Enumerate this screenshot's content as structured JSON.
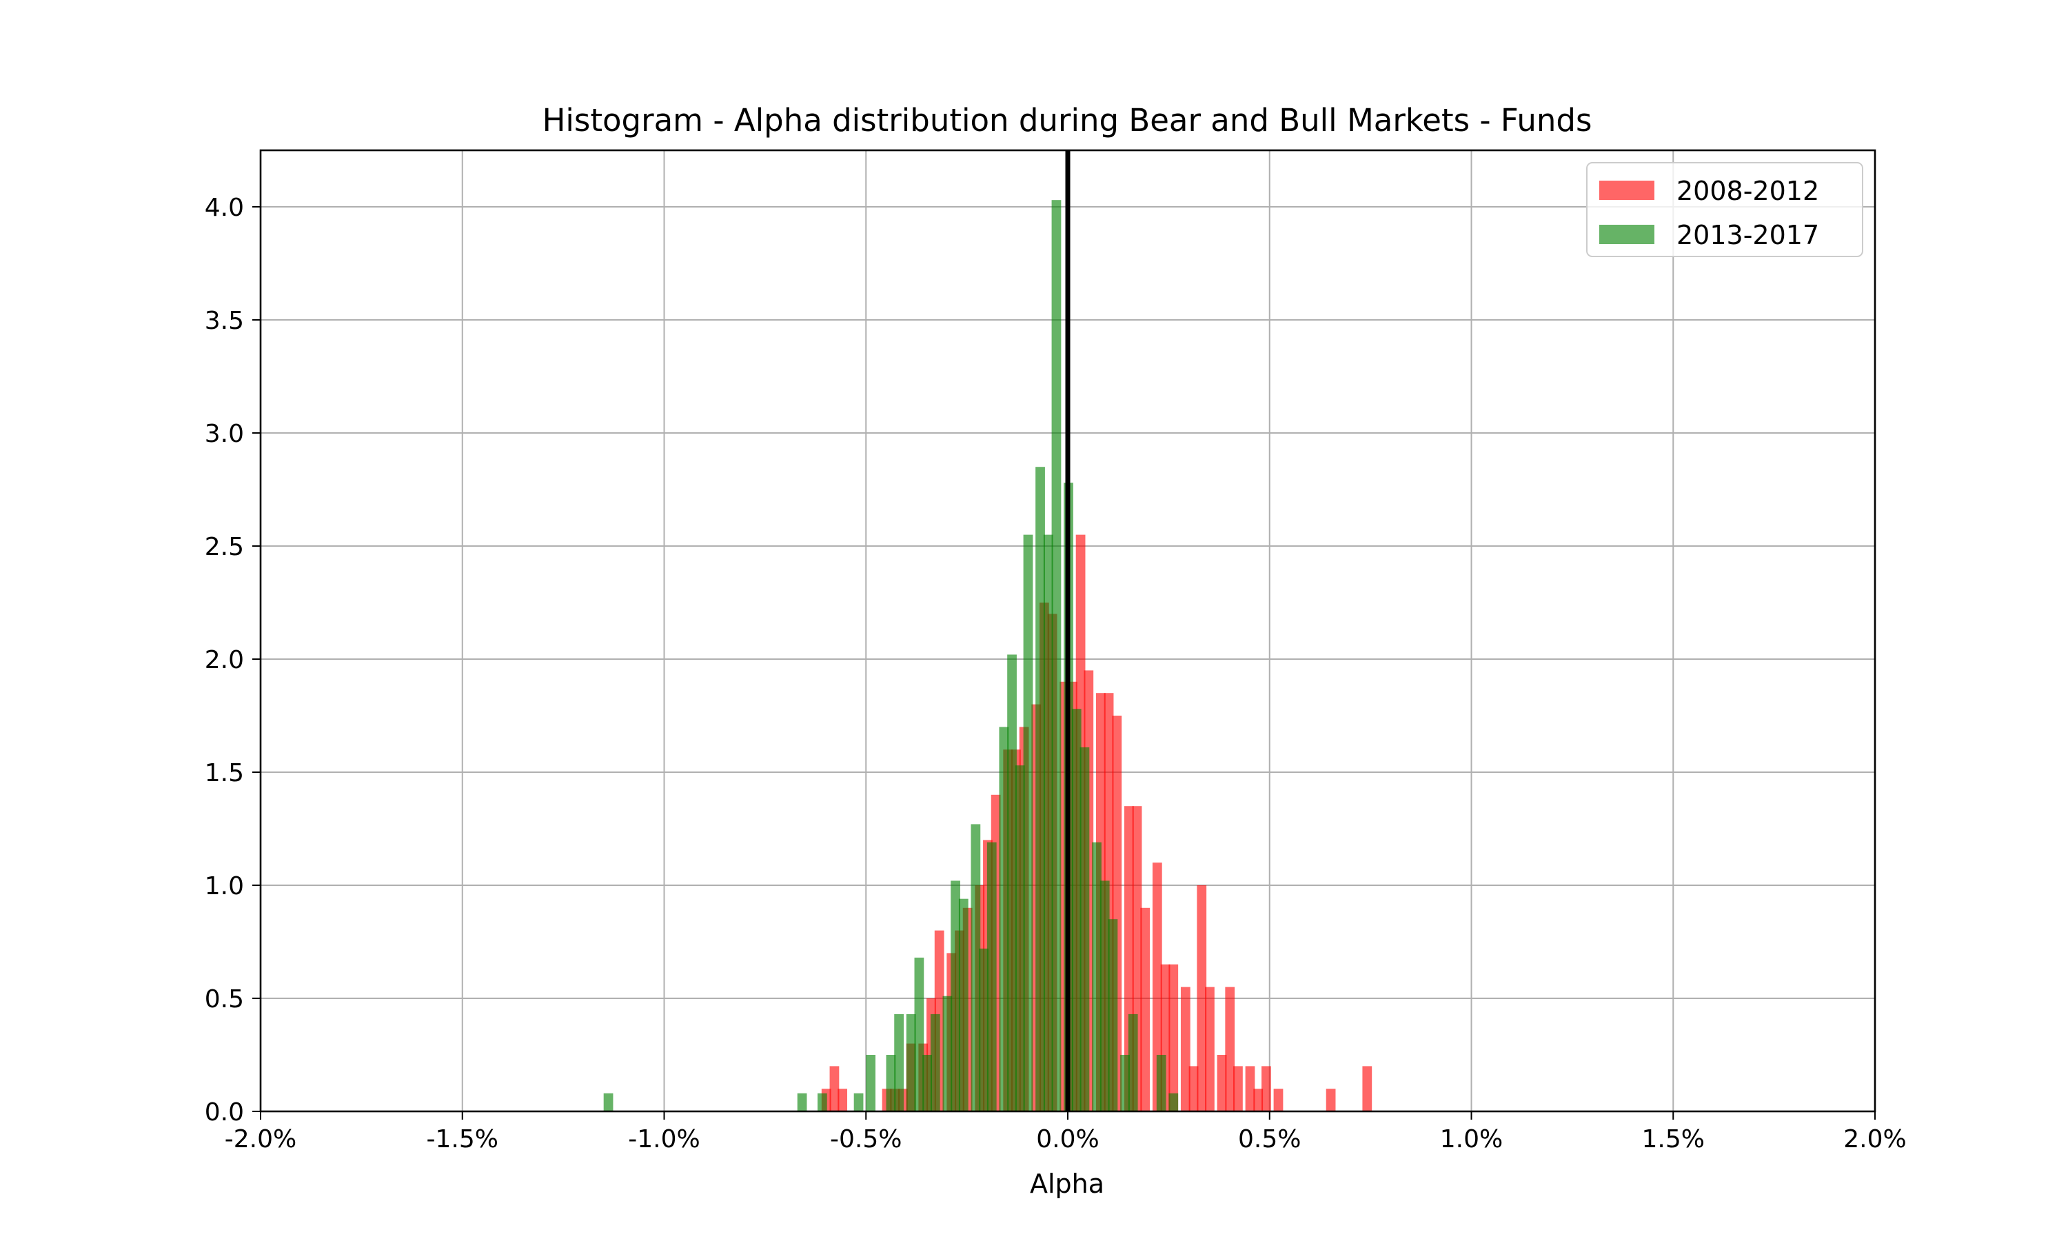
{
  "chart_data": {
    "type": "bar",
    "title": "Histogram - Alpha distribution during Bear and Bull Markets - Funds",
    "xlabel": "Alpha",
    "ylabel": "",
    "xlim": [
      -2.0,
      2.0
    ],
    "ylim": [
      0,
      4.25
    ],
    "x_tick_values": [
      -2.0,
      -1.5,
      -1.0,
      -0.5,
      0.0,
      0.5,
      1.0,
      1.5,
      2.0
    ],
    "x_tick_labels": [
      "-2.0%",
      "-1.5%",
      "-1.0%",
      "-0.5%",
      "0.0%",
      "0.5%",
      "1.0%",
      "1.5%",
      "2.0%"
    ],
    "y_tick_values": [
      0.0,
      0.5,
      1.0,
      1.5,
      2.0,
      2.5,
      3.0,
      3.5,
      4.0
    ],
    "y_tick_labels": [
      "0.0",
      "0.5",
      "1.0",
      "1.5",
      "2.0",
      "2.5",
      "3.0",
      "3.5",
      "4.0"
    ],
    "grid": true,
    "legend_position": "top-right",
    "vertical_line": {
      "x": 0.0,
      "color": "#000000"
    },
    "series": [
      {
        "name": "2008-2012",
        "color": "#ff0000",
        "alpha": 0.6,
        "bin_width": 0.0235,
        "bins": [
          {
            "x0": -0.61,
            "height": 0.1
          },
          {
            "x0": -0.59,
            "height": 0.2
          },
          {
            "x0": -0.57,
            "height": 0.1
          },
          {
            "x0": -0.46,
            "height": 0.1
          },
          {
            "x0": -0.44,
            "height": 0.1
          },
          {
            "x0": -0.42,
            "height": 0.1
          },
          {
            "x0": -0.4,
            "height": 0.3
          },
          {
            "x0": -0.37,
            "height": 0.3
          },
          {
            "x0": -0.35,
            "height": 0.5
          },
          {
            "x0": -0.33,
            "height": 0.8
          },
          {
            "x0": -0.3,
            "height": 0.7
          },
          {
            "x0": -0.28,
            "height": 0.8
          },
          {
            "x0": -0.26,
            "height": 0.9
          },
          {
            "x0": -0.23,
            "height": 1.0
          },
          {
            "x0": -0.21,
            "height": 1.2
          },
          {
            "x0": -0.19,
            "height": 1.4
          },
          {
            "x0": -0.16,
            "height": 1.6
          },
          {
            "x0": -0.14,
            "height": 1.6
          },
          {
            "x0": -0.12,
            "height": 1.7
          },
          {
            "x0": -0.09,
            "height": 1.8
          },
          {
            "x0": -0.07,
            "height": 2.25
          },
          {
            "x0": -0.05,
            "height": 2.2
          },
          {
            "x0": -0.02,
            "height": 1.9
          },
          {
            "x0": 0.0,
            "height": 1.9
          },
          {
            "x0": 0.02,
            "height": 2.55
          },
          {
            "x0": 0.04,
            "height": 1.95
          },
          {
            "x0": 0.07,
            "height": 1.85
          },
          {
            "x0": 0.09,
            "height": 1.85
          },
          {
            "x0": 0.11,
            "height": 1.75
          },
          {
            "x0": 0.14,
            "height": 1.35
          },
          {
            "x0": 0.16,
            "height": 1.35
          },
          {
            "x0": 0.18,
            "height": 0.9
          },
          {
            "x0": 0.21,
            "height": 1.1
          },
          {
            "x0": 0.23,
            "height": 0.65
          },
          {
            "x0": 0.25,
            "height": 0.65
          },
          {
            "x0": 0.28,
            "height": 0.55
          },
          {
            "x0": 0.3,
            "height": 0.2
          },
          {
            "x0": 0.32,
            "height": 1.0
          },
          {
            "x0": 0.34,
            "height": 0.55
          },
          {
            "x0": 0.37,
            "height": 0.25
          },
          {
            "x0": 0.39,
            "height": 0.55
          },
          {
            "x0": 0.41,
            "height": 0.2
          },
          {
            "x0": 0.44,
            "height": 0.2
          },
          {
            "x0": 0.46,
            "height": 0.1
          },
          {
            "x0": 0.48,
            "height": 0.2
          },
          {
            "x0": 0.51,
            "height": 0.1
          },
          {
            "x0": 0.64,
            "height": 0.1
          },
          {
            "x0": 0.73,
            "height": 0.2
          }
        ]
      },
      {
        "name": "2013-2017",
        "color": "#008000",
        "alpha": 0.6,
        "bin_width": 0.0235,
        "bins": [
          {
            "x0": -1.15,
            "height": 0.08
          },
          {
            "x0": -0.67,
            "height": 0.08
          },
          {
            "x0": -0.62,
            "height": 0.08
          },
          {
            "x0": -0.53,
            "height": 0.08
          },
          {
            "x0": -0.5,
            "height": 0.25
          },
          {
            "x0": -0.45,
            "height": 0.25
          },
          {
            "x0": -0.43,
            "height": 0.43
          },
          {
            "x0": -0.4,
            "height": 0.43
          },
          {
            "x0": -0.38,
            "height": 0.68
          },
          {
            "x0": -0.36,
            "height": 0.25
          },
          {
            "x0": -0.34,
            "height": 0.43
          },
          {
            "x0": -0.31,
            "height": 0.51
          },
          {
            "x0": -0.29,
            "height": 1.02
          },
          {
            "x0": -0.27,
            "height": 0.94
          },
          {
            "x0": -0.24,
            "height": 1.27
          },
          {
            "x0": -0.22,
            "height": 0.72
          },
          {
            "x0": -0.2,
            "height": 1.19
          },
          {
            "x0": -0.17,
            "height": 1.7
          },
          {
            "x0": -0.15,
            "height": 2.02
          },
          {
            "x0": -0.13,
            "height": 1.53
          },
          {
            "x0": -0.11,
            "height": 2.55
          },
          {
            "x0": -0.08,
            "height": 2.85
          },
          {
            "x0": -0.06,
            "height": 2.55
          },
          {
            "x0": -0.04,
            "height": 4.03
          },
          {
            "x0": -0.01,
            "height": 2.78
          },
          {
            "x0": 0.01,
            "height": 1.78
          },
          {
            "x0": 0.03,
            "height": 1.61
          },
          {
            "x0": 0.06,
            "height": 1.19
          },
          {
            "x0": 0.08,
            "height": 1.02
          },
          {
            "x0": 0.1,
            "height": 0.85
          },
          {
            "x0": 0.13,
            "height": 0.25
          },
          {
            "x0": 0.15,
            "height": 0.43
          },
          {
            "x0": 0.22,
            "height": 0.25
          },
          {
            "x0": 0.25,
            "height": 0.08
          }
        ]
      }
    ]
  }
}
